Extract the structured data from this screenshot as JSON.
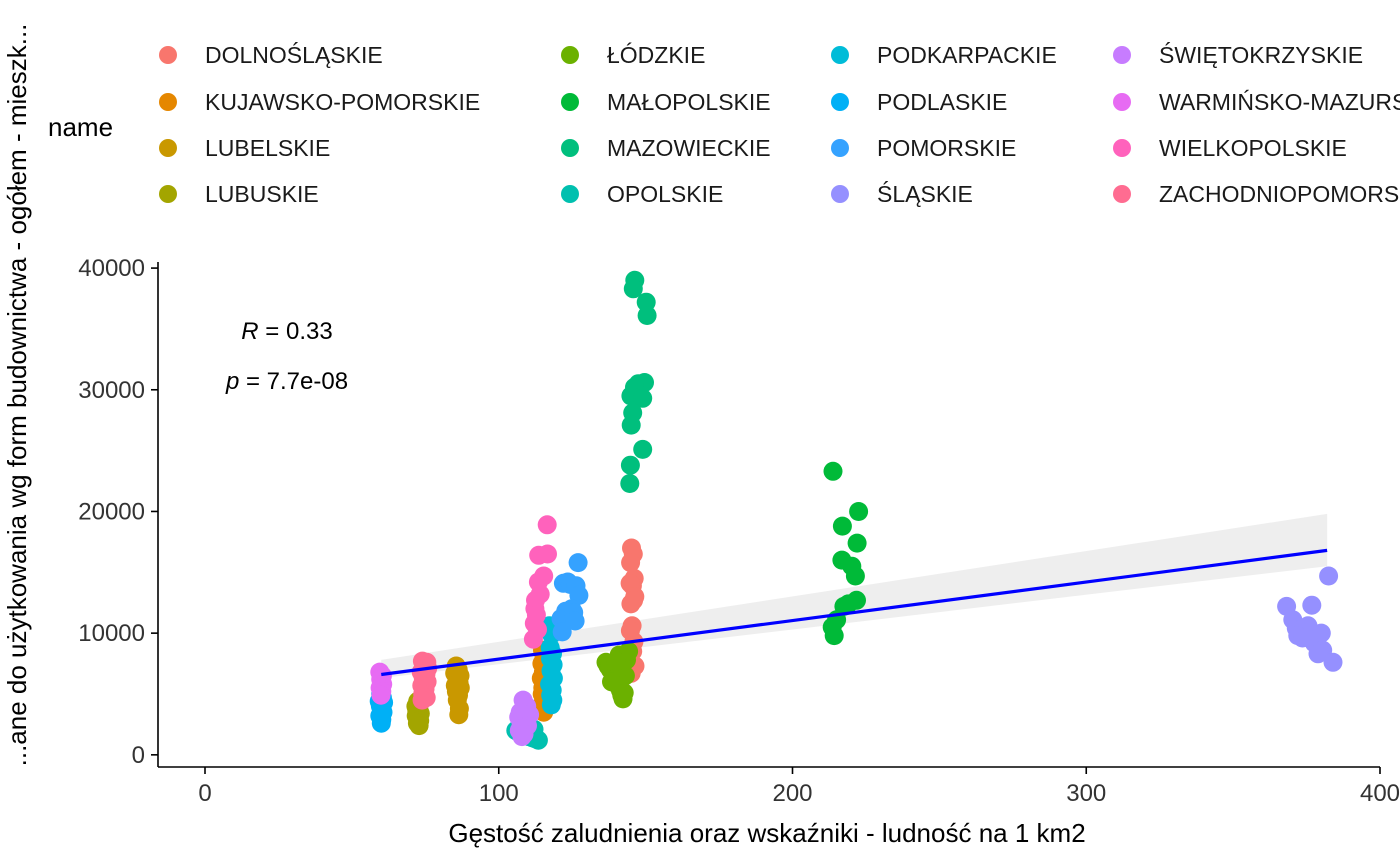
{
  "chart_data": {
    "type": "scatter",
    "xlabel": "Gęstość zaludnienia oraz wskaźniki - ludność na 1 km2",
    "ylabel": "...ane do użytkowania wg form budownictwa - ogółem - mieszk...",
    "xlim": [
      -16,
      400
    ],
    "ylim": [
      -1000,
      40500
    ],
    "x_ticks": [
      0,
      100,
      200,
      300,
      400
    ],
    "y_ticks": [
      0,
      10000,
      20000,
      30000,
      40000
    ],
    "legend_title": "name",
    "legend_position": "top",
    "grid": false,
    "annotation": {
      "r_label": "R",
      "r_value": " = 0.33",
      "p_label": "p",
      "p_value": " = 7.7e-08"
    },
    "regression": {
      "x0": 60,
      "y0": 6600,
      "x1": 382,
      "y1": 16800,
      "line_color": "#0000FF",
      "band_color": "#EBEBEB",
      "band_lower": [
        6300,
        15500
      ],
      "band_upper": [
        7800,
        19800
      ]
    },
    "series": [
      {
        "name": "DOLNOŚLĄSKIE",
        "color": "#F8766D",
        "points": [
          [
            145.2,
            17000
          ],
          [
            145.8,
            16500
          ],
          [
            144.9,
            15800
          ],
          [
            146.1,
            14500
          ],
          [
            145.5,
            13900
          ],
          [
            144.7,
            14100
          ],
          [
            146.3,
            13000
          ],
          [
            145.0,
            12400
          ],
          [
            145.9,
            12700
          ],
          [
            145.4,
            10600
          ],
          [
            144.8,
            10200
          ],
          [
            146.0,
            9300
          ],
          [
            145.6,
            8500
          ],
          [
            146.4,
            7300
          ],
          [
            145.1,
            6700
          ]
        ]
      },
      {
        "name": "KUJAWSKO-POMORSKIE",
        "color": "#E58700",
        "points": [
          [
            114.9,
            8600
          ],
          [
            115.4,
            8100
          ],
          [
            114.7,
            7500
          ],
          [
            115.6,
            7100
          ],
          [
            115.2,
            6800
          ],
          [
            114.5,
            6300
          ],
          [
            115.8,
            5900
          ],
          [
            115.0,
            5500
          ],
          [
            114.8,
            5000
          ],
          [
            115.5,
            4700
          ],
          [
            115.1,
            4300
          ],
          [
            114.6,
            3900
          ],
          [
            115.3,
            3500
          ]
        ]
      },
      {
        "name": "LUBELSKIE",
        "color": "#C99800",
        "points": [
          [
            85.5,
            7300
          ],
          [
            86.2,
            7000
          ],
          [
            85.0,
            6700
          ],
          [
            86.8,
            6500
          ],
          [
            85.8,
            6200
          ],
          [
            86.5,
            5900
          ],
          [
            85.2,
            5700
          ],
          [
            86.9,
            5500
          ],
          [
            85.6,
            5200
          ],
          [
            86.3,
            4900
          ],
          [
            85.9,
            4500
          ],
          [
            86.6,
            3800
          ],
          [
            86.4,
            3300
          ]
        ]
      },
      {
        "name": "LUBUSKIE",
        "color": "#A3A500",
        "points": [
          [
            72.4,
            4400
          ],
          [
            73.0,
            4200
          ],
          [
            71.8,
            4000
          ],
          [
            72.8,
            3800
          ],
          [
            72.1,
            3600
          ],
          [
            73.3,
            3400
          ],
          [
            71.9,
            3200
          ],
          [
            72.6,
            3000
          ],
          [
            73.1,
            2800
          ],
          [
            72.3,
            2600
          ],
          [
            72.9,
            2400
          ]
        ]
      },
      {
        "name": "ŁÓDZKIE",
        "color": "#6BB100",
        "points": [
          [
            136.5,
            7600
          ],
          [
            137.2,
            7300
          ],
          [
            138.0,
            7000
          ],
          [
            138.8,
            6900
          ],
          [
            139.5,
            6700
          ],
          [
            137.8,
            7500
          ],
          [
            140.2,
            7000
          ],
          [
            141.0,
            8200
          ],
          [
            139.1,
            6200
          ],
          [
            140.6,
            5700
          ],
          [
            141.4,
            5300
          ],
          [
            141.9,
            4900
          ],
          [
            142.3,
            4600
          ],
          [
            142.7,
            5100
          ],
          [
            143.5,
            7800
          ],
          [
            144.2,
            8500
          ],
          [
            143.1,
            6500
          ],
          [
            141.7,
            7200
          ],
          [
            140.0,
            7700
          ],
          [
            138.4,
            6000
          ]
        ]
      },
      {
        "name": "MAŁOPOLSKIE",
        "color": "#00BA38",
        "points": [
          [
            213.8,
            23300
          ],
          [
            217.0,
            18800
          ],
          [
            222.5,
            20000
          ],
          [
            222.0,
            17400
          ],
          [
            216.8,
            16000
          ],
          [
            220.2,
            15500
          ],
          [
            221.4,
            14700
          ],
          [
            221.8,
            12700
          ],
          [
            219.0,
            12400
          ],
          [
            217.5,
            12200
          ],
          [
            215.0,
            11100
          ],
          [
            214.2,
            9800
          ],
          [
            213.5,
            10500
          ]
        ]
      },
      {
        "name": "MAZOWIECKIE",
        "color": "#00BF7D",
        "points": [
          [
            146.3,
            39000
          ],
          [
            145.8,
            38300
          ],
          [
            150.2,
            37200
          ],
          [
            150.5,
            36100
          ],
          [
            147.5,
            30500
          ],
          [
            149.6,
            30600
          ],
          [
            146.2,
            30200
          ],
          [
            145.0,
            29500
          ],
          [
            149.0,
            29300
          ],
          [
            145.6,
            28100
          ],
          [
            145.1,
            27100
          ],
          [
            149.0,
            25100
          ],
          [
            144.8,
            23800
          ],
          [
            144.6,
            22300
          ]
        ]
      },
      {
        "name": "OPOLSKIE",
        "color": "#00C0AF",
        "points": [
          [
            105.8,
            2000
          ],
          [
            106.5,
            1900
          ],
          [
            107.3,
            1800
          ],
          [
            108.4,
            1700
          ],
          [
            109.0,
            1600
          ],
          [
            110.2,
            1500
          ],
          [
            111.5,
            1400
          ],
          [
            112.6,
            1300
          ],
          [
            113.5,
            1200
          ],
          [
            112.0,
            2100
          ]
        ]
      },
      {
        "name": "PODKARPACKIE",
        "color": "#00BCD8",
        "points": [
          [
            117.2,
            10600
          ],
          [
            118.0,
            9900
          ],
          [
            117.5,
            8800
          ],
          [
            118.3,
            8300
          ],
          [
            117.6,
            7900
          ],
          [
            118.5,
            7400
          ],
          [
            117.8,
            6900
          ],
          [
            118.6,
            6300
          ],
          [
            117.3,
            5800
          ],
          [
            118.2,
            5300
          ],
          [
            117.7,
            4900
          ],
          [
            118.4,
            4500
          ],
          [
            117.9,
            4100
          ]
        ]
      },
      {
        "name": "PODLASKIE",
        "color": "#00B0F6",
        "points": [
          [
            59.8,
            5000
          ],
          [
            60.4,
            4700
          ],
          [
            59.3,
            4400
          ],
          [
            60.8,
            4300
          ],
          [
            59.7,
            4000
          ],
          [
            60.1,
            3700
          ],
          [
            60.6,
            3500
          ],
          [
            59.5,
            3200
          ],
          [
            60.2,
            2900
          ],
          [
            60.0,
            2600
          ]
        ]
      },
      {
        "name": "POMORSKIE",
        "color": "#35A2FF",
        "points": [
          [
            127.0,
            15800
          ],
          [
            122.0,
            14100
          ],
          [
            123.5,
            14200
          ],
          [
            124.4,
            14000
          ],
          [
            126.3,
            13900
          ],
          [
            127.3,
            13100
          ],
          [
            124.8,
            12000
          ],
          [
            122.8,
            11800
          ],
          [
            121.2,
            11200
          ],
          [
            125.5,
            11700
          ],
          [
            126.0,
            11000
          ],
          [
            121.6,
            10100
          ]
        ]
      },
      {
        "name": "ŚLĄSKIE",
        "color": "#9590FF",
        "points": [
          [
            382.5,
            14700
          ],
          [
            368.2,
            12200
          ],
          [
            376.8,
            12300
          ],
          [
            370.3,
            11100
          ],
          [
            371.5,
            10400
          ],
          [
            373.0,
            10300
          ],
          [
            375.5,
            10600
          ],
          [
            376.2,
            10000
          ],
          [
            380.0,
            10000
          ],
          [
            372.0,
            9800
          ],
          [
            373.6,
            9600
          ],
          [
            378.4,
            9500
          ],
          [
            377.6,
            9200
          ],
          [
            380.5,
            8600
          ],
          [
            378.9,
            8300
          ],
          [
            384.0,
            7600
          ]
        ]
      },
      {
        "name": "ŚWIĘTOKRZYSKIE",
        "color": "#C77CFF",
        "points": [
          [
            108.3,
            4500
          ],
          [
            109.5,
            4000
          ],
          [
            107.3,
            3500
          ],
          [
            110.5,
            3300
          ],
          [
            106.8,
            3100
          ],
          [
            108.8,
            2900
          ],
          [
            107.6,
            2600
          ],
          [
            109.8,
            2400
          ],
          [
            108.1,
            2200
          ],
          [
            107.0,
            2000
          ],
          [
            108.6,
            1700
          ],
          [
            107.9,
            1500
          ]
        ]
      },
      {
        "name": "WARMIŃSKO-MAZURSKIE",
        "color": "#E76BF3",
        "points": [
          [
            59.5,
            6800
          ],
          [
            60.4,
            6500
          ],
          [
            59.8,
            6200
          ],
          [
            60.5,
            5800
          ],
          [
            59.6,
            5500
          ],
          [
            60.2,
            5200
          ],
          [
            59.9,
            4900
          ]
        ]
      },
      {
        "name": "WIELKOPOLSKIE",
        "color": "#FF62BC",
        "points": [
          [
            116.5,
            18900
          ],
          [
            113.6,
            16400
          ],
          [
            116.6,
            16500
          ],
          [
            115.3,
            14700
          ],
          [
            113.5,
            14200
          ],
          [
            114.1,
            13200
          ],
          [
            112.5,
            12700
          ],
          [
            112.3,
            12000
          ],
          [
            112.8,
            11500
          ],
          [
            112.1,
            10800
          ],
          [
            113.2,
            10300
          ],
          [
            111.8,
            9500
          ]
        ]
      },
      {
        "name": "ZACHODNIOPOMORSKIE",
        "color": "#FF6C91",
        "points": [
          [
            74.0,
            7700
          ],
          [
            75.5,
            7600
          ],
          [
            74.5,
            7300
          ],
          [
            75.8,
            7100
          ],
          [
            73.6,
            6800
          ],
          [
            75.2,
            6600
          ],
          [
            74.3,
            6300
          ],
          [
            75.6,
            6000
          ],
          [
            73.8,
            5700
          ],
          [
            74.9,
            5400
          ],
          [
            74.1,
            5000
          ],
          [
            75.3,
            4700
          ],
          [
            73.9,
            4500
          ]
        ]
      }
    ]
  }
}
